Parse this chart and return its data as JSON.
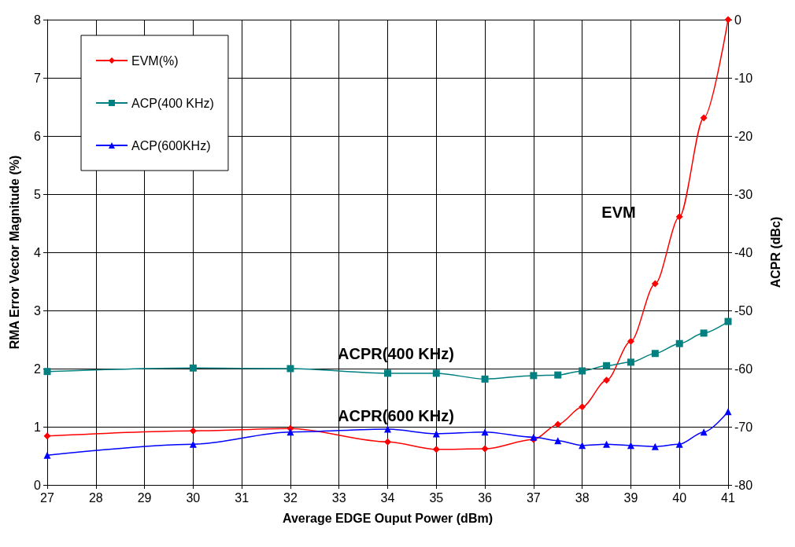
{
  "chart_data": {
    "type": "line",
    "xlabel": "Average EDGE Ouput Power (dBm)",
    "ylabel": "RMA Error Vector Magnitude (%)",
    "y2label": "ACPR (dBc)",
    "x": [
      27,
      30,
      32,
      34,
      35,
      36,
      37,
      37.5,
      38,
      38.5,
      39,
      39.5,
      40,
      40.5,
      41
    ],
    "series": [
      {
        "name": "EVM(%)",
        "color": "#ff0000",
        "marker": "diamond",
        "values": [
          0.84,
          0.93,
          0.97,
          0.74,
          0.61,
          0.62,
          0.78,
          1.04,
          1.34,
          1.8,
          2.47,
          3.46,
          4.61,
          6.31,
          8.0
        ]
      },
      {
        "name": "ACP(400 KHz)",
        "color": "#008080",
        "marker": "square",
        "axis": "y2",
        "values": [
          -60.5,
          -59.9,
          -60.0,
          -60.8,
          -60.8,
          -61.8,
          -61.2,
          -61.1,
          -60.4,
          -59.5,
          -58.9,
          -57.4,
          -55.7,
          -53.9,
          -51.9
        ]
      },
      {
        "name": "ACP(600KHz)",
        "color": "#0000ff",
        "marker": "triangle",
        "axis": "y2",
        "values": [
          -74.9,
          -73.0,
          -70.9,
          -70.4,
          -71.2,
          -70.9,
          -71.8,
          -72.4,
          -73.2,
          -73.0,
          -73.2,
          -73.4,
          -73.0,
          -70.9,
          -67.4
        ]
      }
    ],
    "xlim": [
      27,
      41
    ],
    "xticks": [
      27,
      28,
      29,
      30,
      31,
      32,
      33,
      34,
      35,
      36,
      37,
      38,
      39,
      40,
      41
    ],
    "ylim": [
      0,
      8
    ],
    "yticks": [
      0,
      1,
      2,
      3,
      4,
      5,
      6,
      7,
      8
    ],
    "y2lim": [
      -80,
      0
    ],
    "y2ticks": [
      -80,
      -70,
      -60,
      -50,
      -40,
      -30,
      -20,
      -10,
      0
    ],
    "annotations": [
      "EVM",
      "ACPR(400 KHz)",
      "ACPR(600 KHz)"
    ],
    "grid": true,
    "legend": "top left",
    "line_style": "solid"
  }
}
